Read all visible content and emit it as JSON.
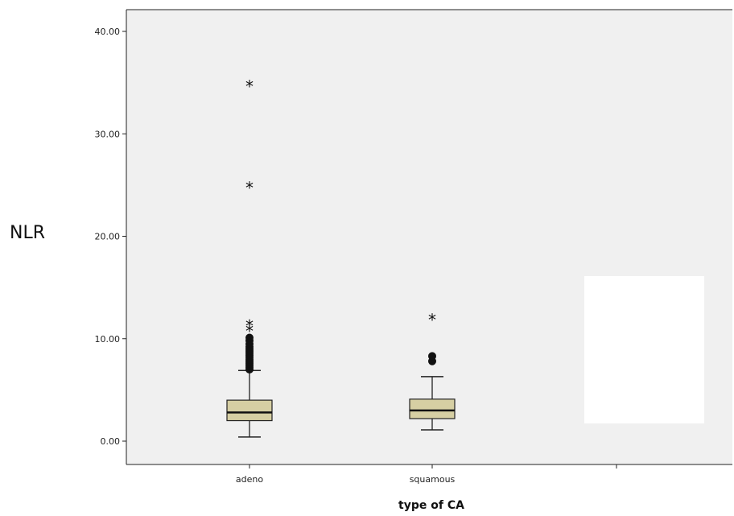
{
  "chart_data": {
    "type": "box",
    "title": "",
    "xlabel": "type of CA",
    "ylabel": "NLR",
    "ylim": [
      -2.2,
      41
    ],
    "yticks": [
      0,
      10,
      20,
      30,
      40
    ],
    "ytick_labels": [
      "0.00",
      "10.00",
      "20.00",
      "30.00",
      "40.00"
    ],
    "categories": [
      "adeno",
      "squamous",
      ""
    ],
    "grid": false,
    "legend": "none",
    "colors": {
      "plot_bg": "#f0f0f0",
      "box_fill": "#d6cfa3",
      "box_stroke": "#222222"
    },
    "boxes": [
      {
        "category": "adeno",
        "whisker_low": 0.4,
        "q1": 2.0,
        "median": 2.8,
        "q3": 4.0,
        "whisker_high": 6.9,
        "outliers_circle": [
          7.0,
          7.2,
          7.4,
          7.6,
          7.8,
          8.0,
          8.2,
          8.4,
          8.6,
          8.8,
          9.0,
          9.2,
          9.5,
          9.8,
          10.1
        ],
        "outliers_star": [
          10.8,
          11.3,
          24.8,
          34.7
        ]
      },
      {
        "category": "squamous",
        "whisker_low": 1.1,
        "q1": 2.2,
        "median": 3.0,
        "q3": 4.1,
        "whisker_high": 6.3,
        "outliers_circle": [
          7.8,
          8.3
        ],
        "outliers_star": [
          11.9
        ]
      }
    ]
  }
}
